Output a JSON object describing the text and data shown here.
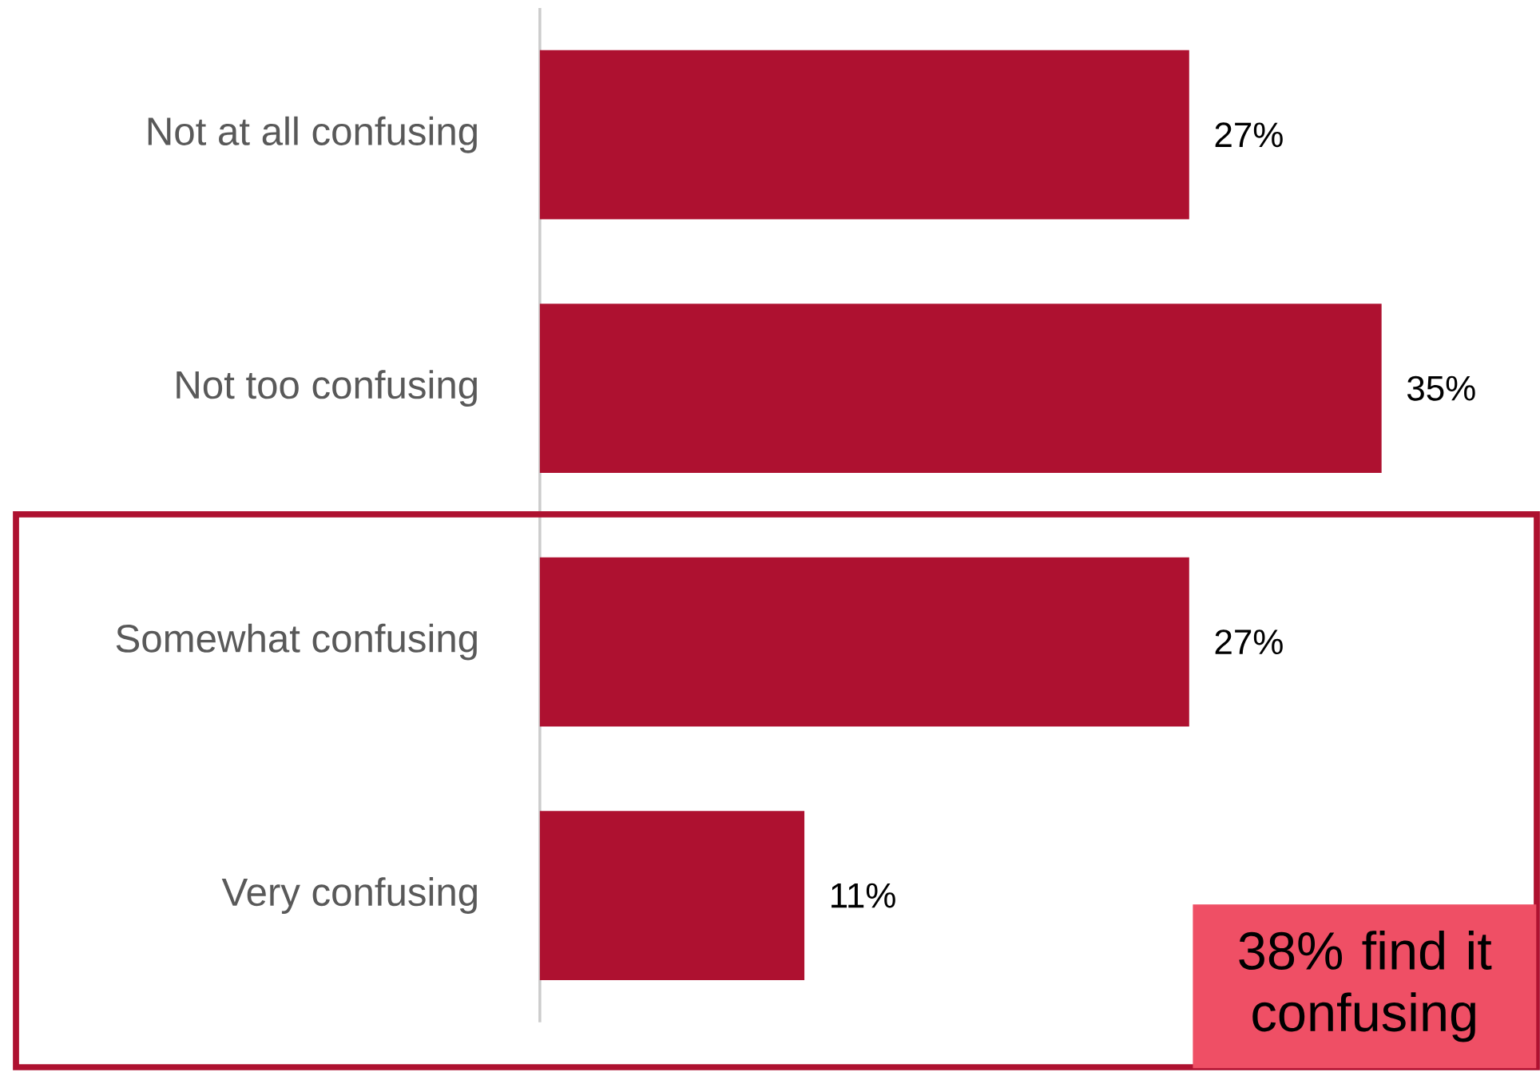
{
  "chart_data": {
    "type": "bar",
    "orientation": "horizontal",
    "categories": [
      "Not at all confusing",
      "Not too confusing",
      "Somewhat confusing",
      "Very confusing"
    ],
    "values": [
      27,
      35,
      27,
      11
    ],
    "value_labels": [
      "27%",
      "35%",
      "27%",
      "11%"
    ],
    "color": "#ae1130",
    "annotations": [
      "38% find it confusing"
    ]
  }
}
